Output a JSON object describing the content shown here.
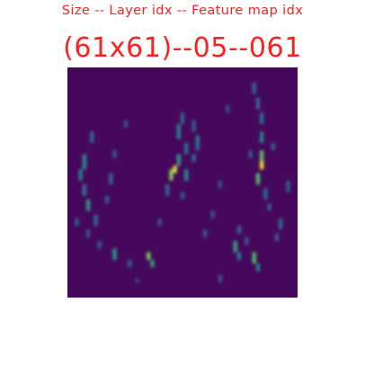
{
  "caption": {
    "legend": "Size -- Layer idx -- Feature map idx",
    "identifier": "(61x61)--05--061"
  },
  "colors": {
    "text": "#ff2020",
    "background": "#ffffff",
    "colormap": "viridis",
    "colormap_low": "#440154",
    "colormap_high": "#fde725"
  }
}
